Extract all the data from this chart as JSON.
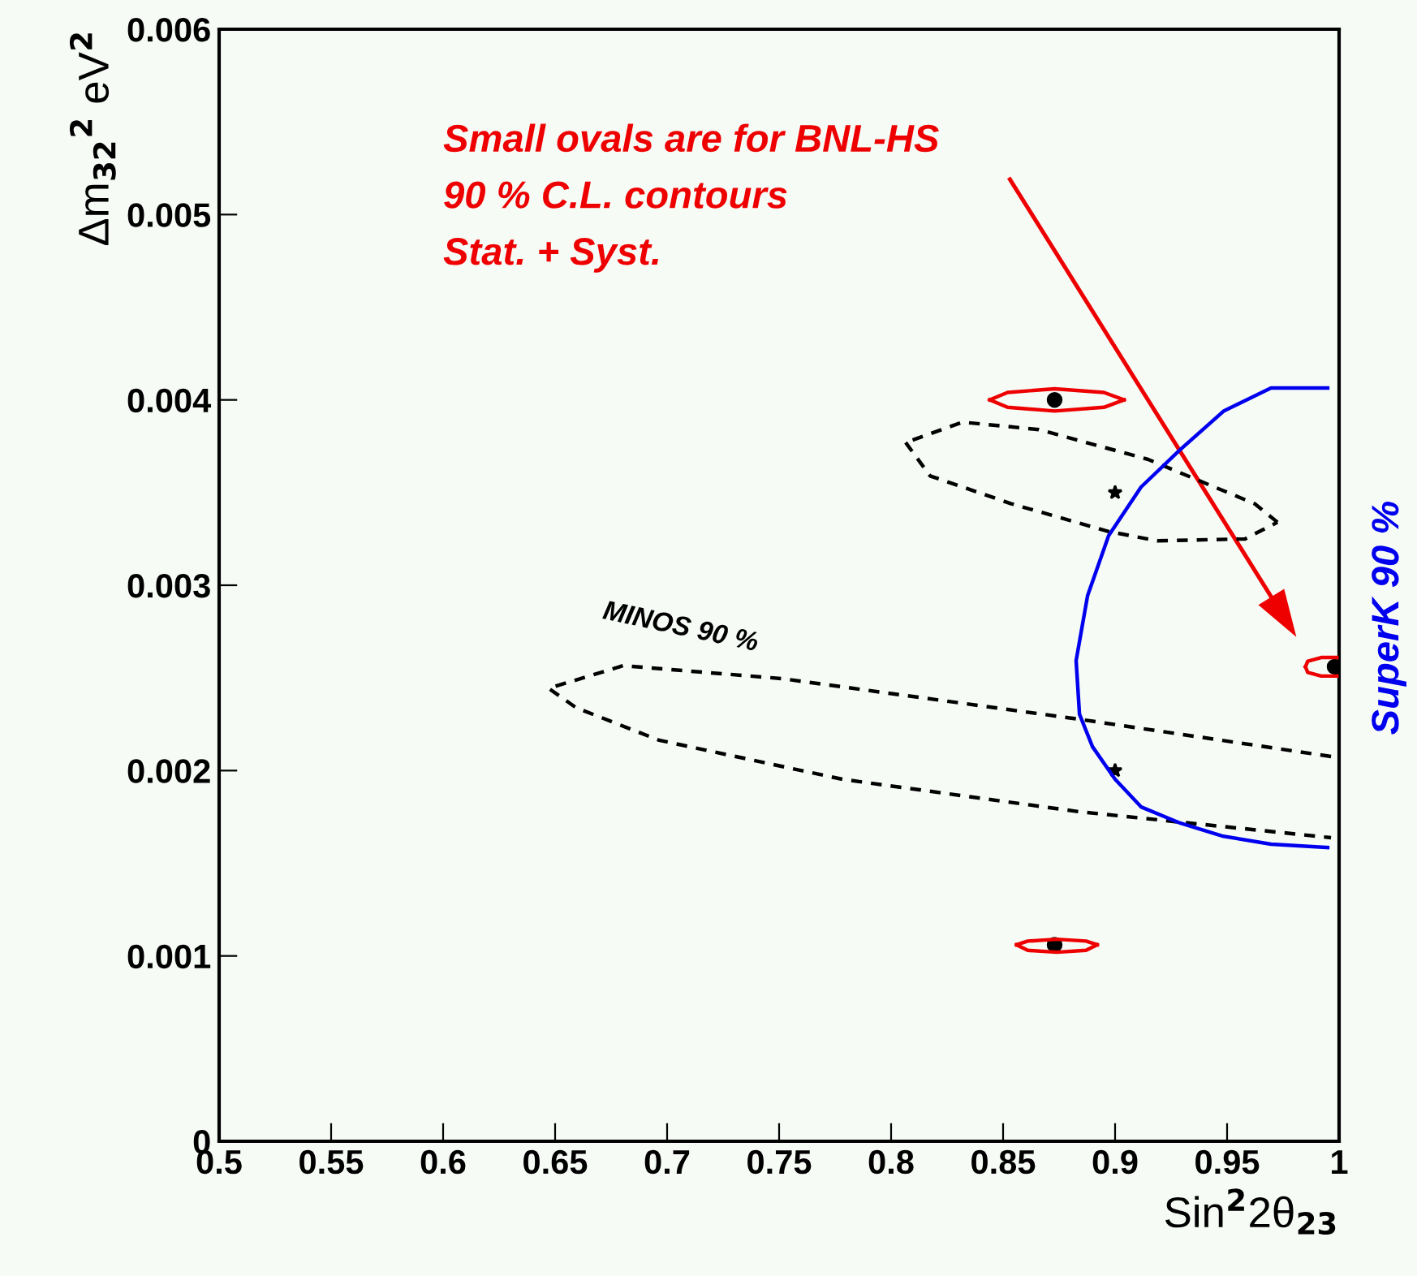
{
  "chart_data": {
    "type": "line",
    "xlabel": "Sin$^{2}$2θ$_{23}$",
    "ylabel": "Δm$_{32}$$^{2}$ eV$^{2}$",
    "xlim": [
      0.5,
      1.0
    ],
    "ylim": [
      0,
      0.006
    ],
    "xticks": [
      0.5,
      0.55,
      0.6,
      0.65,
      0.7,
      0.75,
      0.8,
      0.85,
      0.9,
      0.95,
      {
        "value": 1.0,
        "label": "1"
      }
    ],
    "yticks": [
      {
        "value": 0,
        "label": "0"
      },
      0.001,
      0.002,
      0.003,
      0.004,
      0.005,
      0.006
    ],
    "grid": false,
    "legend": false,
    "series": [
      {
        "name": "MINOS 90 %",
        "color": "#000000",
        "line_style": "dashed",
        "x": [
          0.9964,
          0.884,
          0.7514,
          0.6804,
          0.6471,
          0.6594,
          0.6964,
          0.7783,
          0.884,
          0.9964
        ],
        "values": [
          0.002076,
          0.002277,
          0.002496,
          0.002566,
          0.002444,
          0.002339,
          0.002164,
          0.001953,
          0.001778,
          0.001638
        ]
      },
      {
        "color": "#000000",
        "line_style": "dashed",
        "x": [
          0.9725,
          0.9623,
          0.9145,
          0.8659,
          0.8319,
          0.8065
        ],
        "values": [
          0.00334,
          0.00344,
          0.00368,
          0.00384,
          0.00388,
          0.00377
        ]
      },
      {
        "color": "#000000",
        "line_style": "dashed",
        "x": [
          0.8065,
          0.8174,
          0.8536,
          0.8971,
          0.9188,
          0.958,
          0.9725
        ],
        "values": [
          0.00377,
          0.00359,
          0.00344,
          0.00329,
          0.00324,
          0.00325,
          0.00334
        ]
      },
      {
        "name": "SuperK 90 %",
        "color": "#0000ee",
        "line_style": "solid",
        "x": [
          0.9949,
          0.9696,
          0.9486,
          0.929,
          0.9116,
          0.8971,
          0.8877,
          0.8826,
          0.8841,
          0.8899,
          0.9,
          0.9116,
          0.929,
          0.9478,
          0.9696,
          0.9949
        ],
        "values": [
          0.004064,
          0.004064,
          0.003941,
          0.003731,
          0.00353,
          0.003267,
          0.002943,
          0.002593,
          0.002304,
          0.002129,
          0.001953,
          0.001804,
          0.001717,
          0.001647,
          0.001603,
          0.001585
        ]
      },
      {
        "color": "#ee0000",
        "line_style": "solid",
        "x": [
          0.904,
          0.895,
          0.873,
          0.852,
          0.844
        ],
        "values": [
          0.004,
          0.00404,
          0.00406,
          0.00404,
          0.004
        ]
      },
      {
        "color": "#ee0000",
        "line_style": "solid",
        "x": [
          0.844,
          0.852,
          0.873,
          0.895,
          0.904
        ],
        "values": [
          0.004,
          0.00396,
          0.00394,
          0.00396,
          0.004
        ]
      },
      {
        "color": "#ee0000",
        "line_style": "solid",
        "x": [
          0.892,
          0.887,
          0.874,
          0.861,
          0.856
        ],
        "values": [
          0.00106,
          0.00108,
          0.00109,
          0.00108,
          0.00106
        ]
      },
      {
        "color": "#ee0000",
        "line_style": "solid",
        "x": [
          0.856,
          0.861,
          0.874,
          0.887,
          0.892
        ],
        "values": [
          0.00106,
          0.00103,
          0.00102,
          0.00103,
          0.00106
        ]
      },
      {
        "color": "#ee0000",
        "line_style": "solid",
        "x": [
          0.999,
          0.992,
          0.986,
          0.985
        ],
        "values": [
          0.00261,
          0.00261,
          0.00259,
          0.00256
        ]
      },
      {
        "color": "#ee0000",
        "line_style": "solid",
        "x": [
          0.985,
          0.986,
          0.992,
          0.999
        ],
        "values": [
          0.00256,
          0.00253,
          0.00251,
          0.00251
        ]
      },
      {
        "type": "scatter",
        "color": "#000000",
        "marker": "circle",
        "x": [
          0.873,
          0.873,
          0.998
        ],
        "values": [
          0.004,
          0.00106,
          0.00256
        ]
      },
      {
        "type": "scatter",
        "color": "#000000",
        "marker": "star",
        "x": [
          0.9,
          0.9
        ],
        "values": [
          0.0035,
          0.002
        ]
      }
    ],
    "annotations": [
      "Small ovals are for BNL-HS\n90 % C.L. contours\nStat. + Syst."
    ]
  }
}
